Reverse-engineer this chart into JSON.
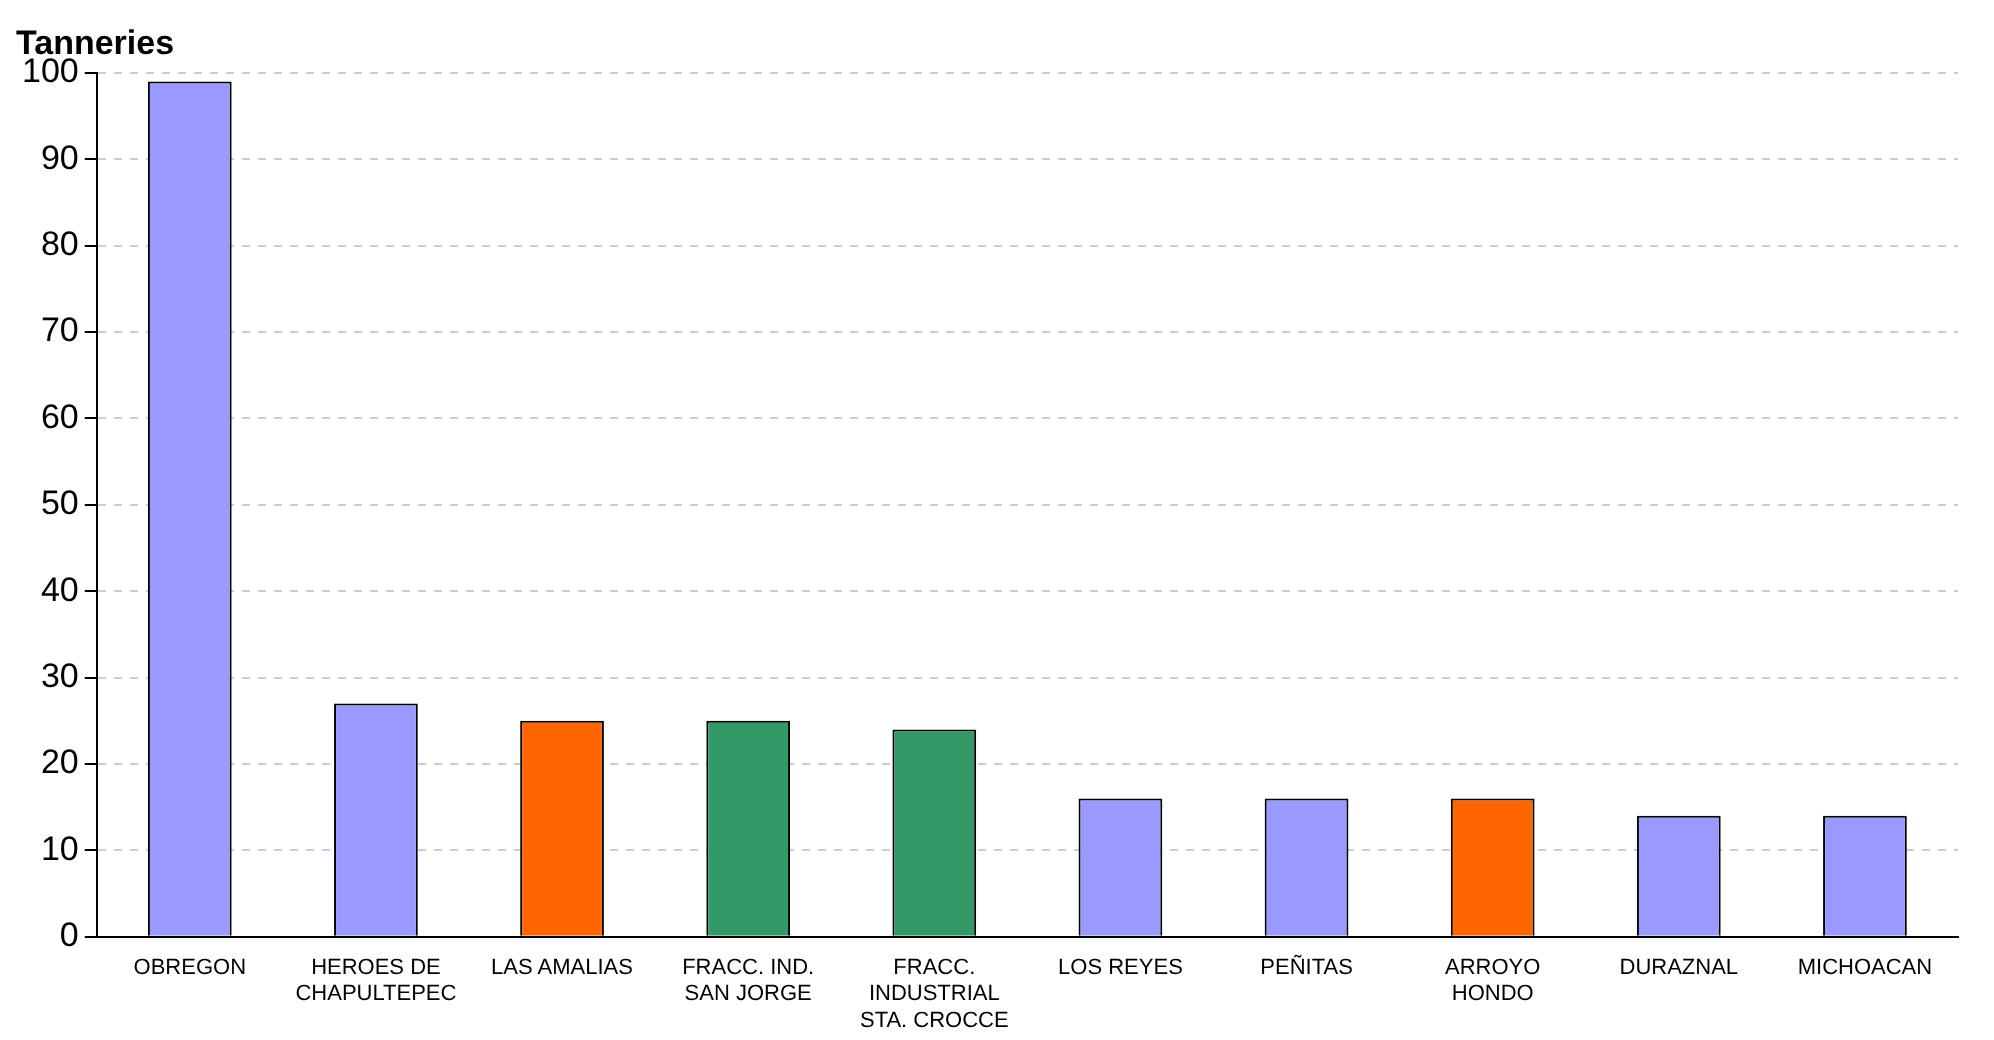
{
  "chart_data": {
    "type": "bar",
    "title": "Tanneries",
    "categories": [
      "OBREGON",
      "HEROES DE CHAPULTEPEC",
      "LAS AMALIAS",
      "FRACC. IND. SAN JORGE",
      "FRACC. INDUSTRIAL STA. CROCCE",
      "LOS REYES",
      "PEÑITAS",
      "ARROYO HONDO",
      "DURAZNAL",
      "MICHOACAN"
    ],
    "values": [
      99,
      27,
      25,
      25,
      24,
      16,
      16,
      16,
      14,
      14
    ],
    "colors": [
      "#9999ff",
      "#9999ff",
      "#ff6600",
      "#339966",
      "#339966",
      "#9999ff",
      "#9999ff",
      "#ff6600",
      "#9999ff",
      "#9999ff"
    ],
    "ylim": [
      0,
      100
    ],
    "yticks": [
      0,
      10,
      20,
      30,
      40,
      50,
      60,
      70,
      80,
      90,
      100
    ],
    "grid": "y",
    "legend": false
  }
}
